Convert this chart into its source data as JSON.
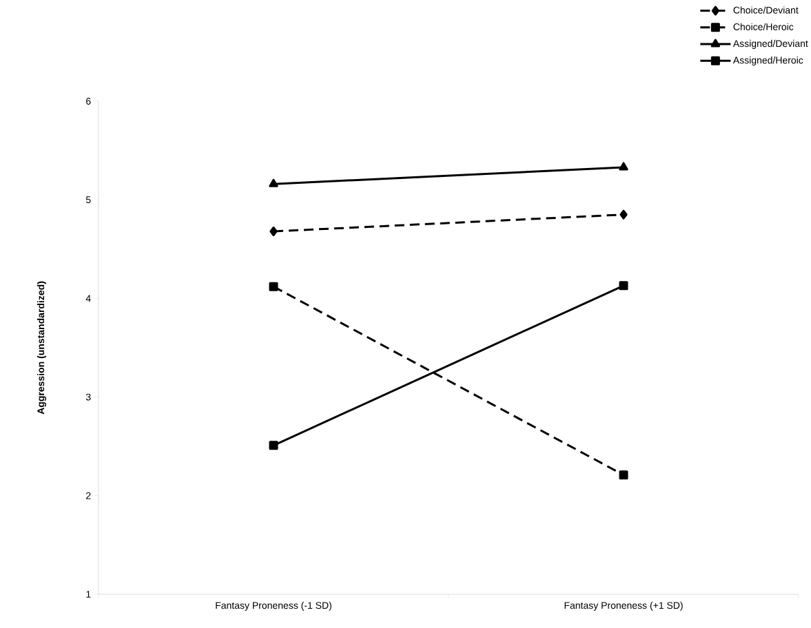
{
  "chart_data": {
    "type": "line",
    "ylabel": "Aggression (unstandardized)",
    "categories": [
      "Fantasy Proneness (-1 SD)",
      "Fantasy Proneness (+1 SD)"
    ],
    "ylim": [
      1,
      6
    ],
    "yticks": [
      1,
      2,
      3,
      4,
      5,
      6
    ],
    "grid": false,
    "legend": "top right",
    "series": [
      {
        "name": "Choice/Deviant",
        "color": "#000000",
        "values": [
          4.68,
          4.85
        ],
        "marker": "diamond",
        "line_style": "dashed"
      },
      {
        "name": "Choice/Heroic",
        "color": "#000000",
        "values": [
          4.12,
          2.21
        ],
        "marker": "square",
        "line_style": "dashed"
      },
      {
        "name": "Assigned/Deviant",
        "color": "#000000",
        "values": [
          5.16,
          5.33
        ],
        "marker": "triangle",
        "line_style": "solid"
      },
      {
        "name": "Assigned/Heroic",
        "color": "#000000",
        "values": [
          2.51,
          4.13
        ],
        "marker": "square",
        "line_style": "solid"
      }
    ]
  }
}
